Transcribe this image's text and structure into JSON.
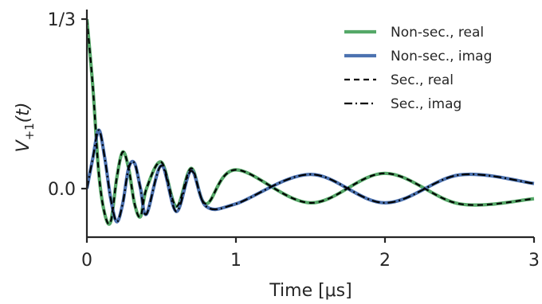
{
  "chart_data": {
    "type": "line",
    "title": "",
    "xlabel": "Time [μs]",
    "ylabel_main": "V",
    "ylabel_sub": "+1",
    "ylabel_arg": "(t)",
    "xlim": [
      0,
      3
    ],
    "ylim": [
      -0.1,
      0.3333
    ],
    "xticks": [
      {
        "value": 0,
        "label": "0"
      },
      {
        "value": 1,
        "label": "1"
      },
      {
        "value": 2,
        "label": "2"
      },
      {
        "value": 3,
        "label": "3"
      }
    ],
    "yticks": [
      {
        "value": 0.0,
        "label": "0.0"
      },
      {
        "value": 0.3333,
        "label": "1/3"
      }
    ],
    "grid": false,
    "legend_position": "top-right",
    "series": [
      {
        "name": "Non-sec., real",
        "color": "#55a868",
        "style": "solid",
        "x": [
          0.0,
          0.04,
          0.08,
          0.12,
          0.16,
          0.2,
          0.24,
          0.28,
          0.32,
          0.36,
          0.4,
          0.5,
          0.6,
          0.7,
          0.8,
          1.0,
          1.5,
          2.0,
          2.5,
          3.0
        ],
        "y": [
          0.333,
          0.2,
          0.03,
          -0.05,
          -0.065,
          0.02,
          0.072,
          0.04,
          -0.03,
          -0.055,
          0.0,
          0.052,
          -0.035,
          0.04,
          -0.03,
          0.037,
          -0.028,
          0.03,
          -0.03,
          -0.02
        ]
      },
      {
        "name": "Non-sec., imag",
        "color": "#4c72b0",
        "style": "solid",
        "x": [
          0.0,
          0.04,
          0.08,
          0.12,
          0.16,
          0.2,
          0.24,
          0.28,
          0.32,
          0.36,
          0.4,
          0.5,
          0.6,
          0.7,
          0.8,
          1.0,
          1.5,
          2.0,
          2.5,
          3.0
        ],
        "y": [
          0.0,
          0.06,
          0.115,
          0.06,
          -0.02,
          -0.065,
          -0.03,
          0.04,
          0.05,
          0.0,
          -0.05,
          0.045,
          -0.045,
          0.035,
          -0.035,
          -0.03,
          0.028,
          -0.028,
          0.027,
          0.01
        ]
      },
      {
        "name": "Sec., real",
        "color": "#000000",
        "style": "dashed",
        "x": [
          0.0,
          0.04,
          0.08,
          0.12,
          0.16,
          0.2,
          0.24,
          0.28,
          0.32,
          0.36,
          0.4,
          0.5,
          0.6,
          0.7,
          0.8,
          1.0,
          1.5,
          2.0,
          2.5,
          3.0
        ],
        "y": [
          0.333,
          0.2,
          0.03,
          -0.05,
          -0.065,
          0.02,
          0.072,
          0.04,
          -0.03,
          -0.055,
          0.0,
          0.052,
          -0.035,
          0.04,
          -0.03,
          0.037,
          -0.028,
          0.03,
          -0.03,
          -0.02
        ]
      },
      {
        "name": "Sec., imag",
        "color": "#000000",
        "style": "dashdot",
        "x": [
          0.0,
          0.04,
          0.08,
          0.12,
          0.16,
          0.2,
          0.24,
          0.28,
          0.32,
          0.36,
          0.4,
          0.5,
          0.6,
          0.7,
          0.8,
          1.0,
          1.5,
          2.0,
          2.5,
          3.0
        ],
        "y": [
          0.0,
          0.06,
          0.115,
          0.06,
          -0.02,
          -0.065,
          -0.03,
          0.04,
          0.05,
          0.0,
          -0.05,
          0.045,
          -0.045,
          0.035,
          -0.035,
          -0.03,
          0.028,
          -0.028,
          0.027,
          0.01
        ]
      }
    ]
  }
}
